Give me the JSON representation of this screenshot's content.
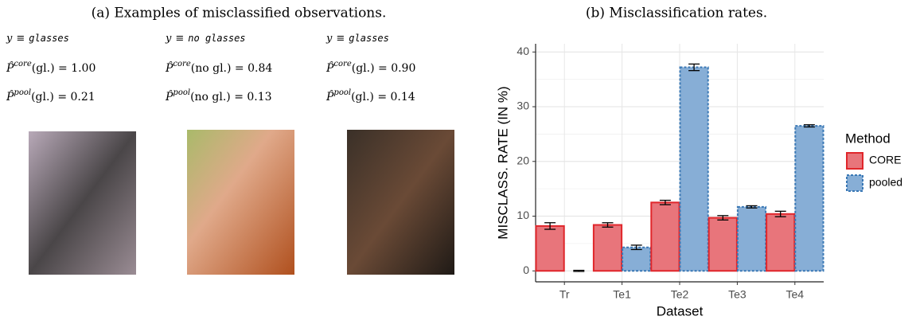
{
  "panel_a": {
    "caption": "(a) Examples of misclassified observations.",
    "examples": [
      {
        "y_symbol": "y",
        "equiv": "≡",
        "y_value": "glasses",
        "p_symbol": "P̂",
        "core_sup": "core",
        "core_expr": "(gl.) = 1.00",
        "pool_sup": "pool",
        "pool_expr": "(gl.) = 0.21"
      },
      {
        "y_symbol": "y",
        "equiv": "≡",
        "y_value": "no glasses",
        "p_symbol": "P̂",
        "core_sup": "core",
        "core_expr": "(no gl.) = 0.84",
        "pool_sup": "pool",
        "pool_expr": "(no gl.) = 0.13"
      },
      {
        "y_symbol": "y",
        "equiv": "≡",
        "y_value": "glasses",
        "p_symbol": "P̂",
        "core_sup": "core",
        "core_expr": "(gl.) = 0.90",
        "pool_sup": "pool",
        "pool_expr": "(gl.) = 0.14"
      }
    ]
  },
  "chart_data": {
    "type": "bar",
    "title": "(b) Misclassification rates.",
    "x_label": "Dataset",
    "y_label": "MISCLASS. RATE (IN %)",
    "categories": [
      "Tr",
      "Te1",
      "Te2",
      "Te3",
      "Te4"
    ],
    "series": [
      {
        "name": "CORE",
        "color": "#e8757b",
        "stroke": "#e0262b",
        "dashed": false,
        "values": [
          8.2,
          8.4,
          12.5,
          9.7,
          10.4
        ],
        "errors": [
          0.6,
          0.4,
          0.4,
          0.4,
          0.5
        ]
      },
      {
        "name": "pooled",
        "color": "#87aed6",
        "stroke": "#3a78b5",
        "dashed": true,
        "values": [
          0,
          4.3,
          37.2,
          11.7,
          26.5
        ],
        "errors": [
          0.1,
          0.4,
          0.6,
          0.2,
          0.2
        ]
      }
    ],
    "ylim": [
      -2,
      41.5
    ],
    "yticks": [
      0,
      10,
      20,
      30,
      40
    ],
    "grid": true,
    "legend_title": "Method",
    "legend": "right"
  }
}
